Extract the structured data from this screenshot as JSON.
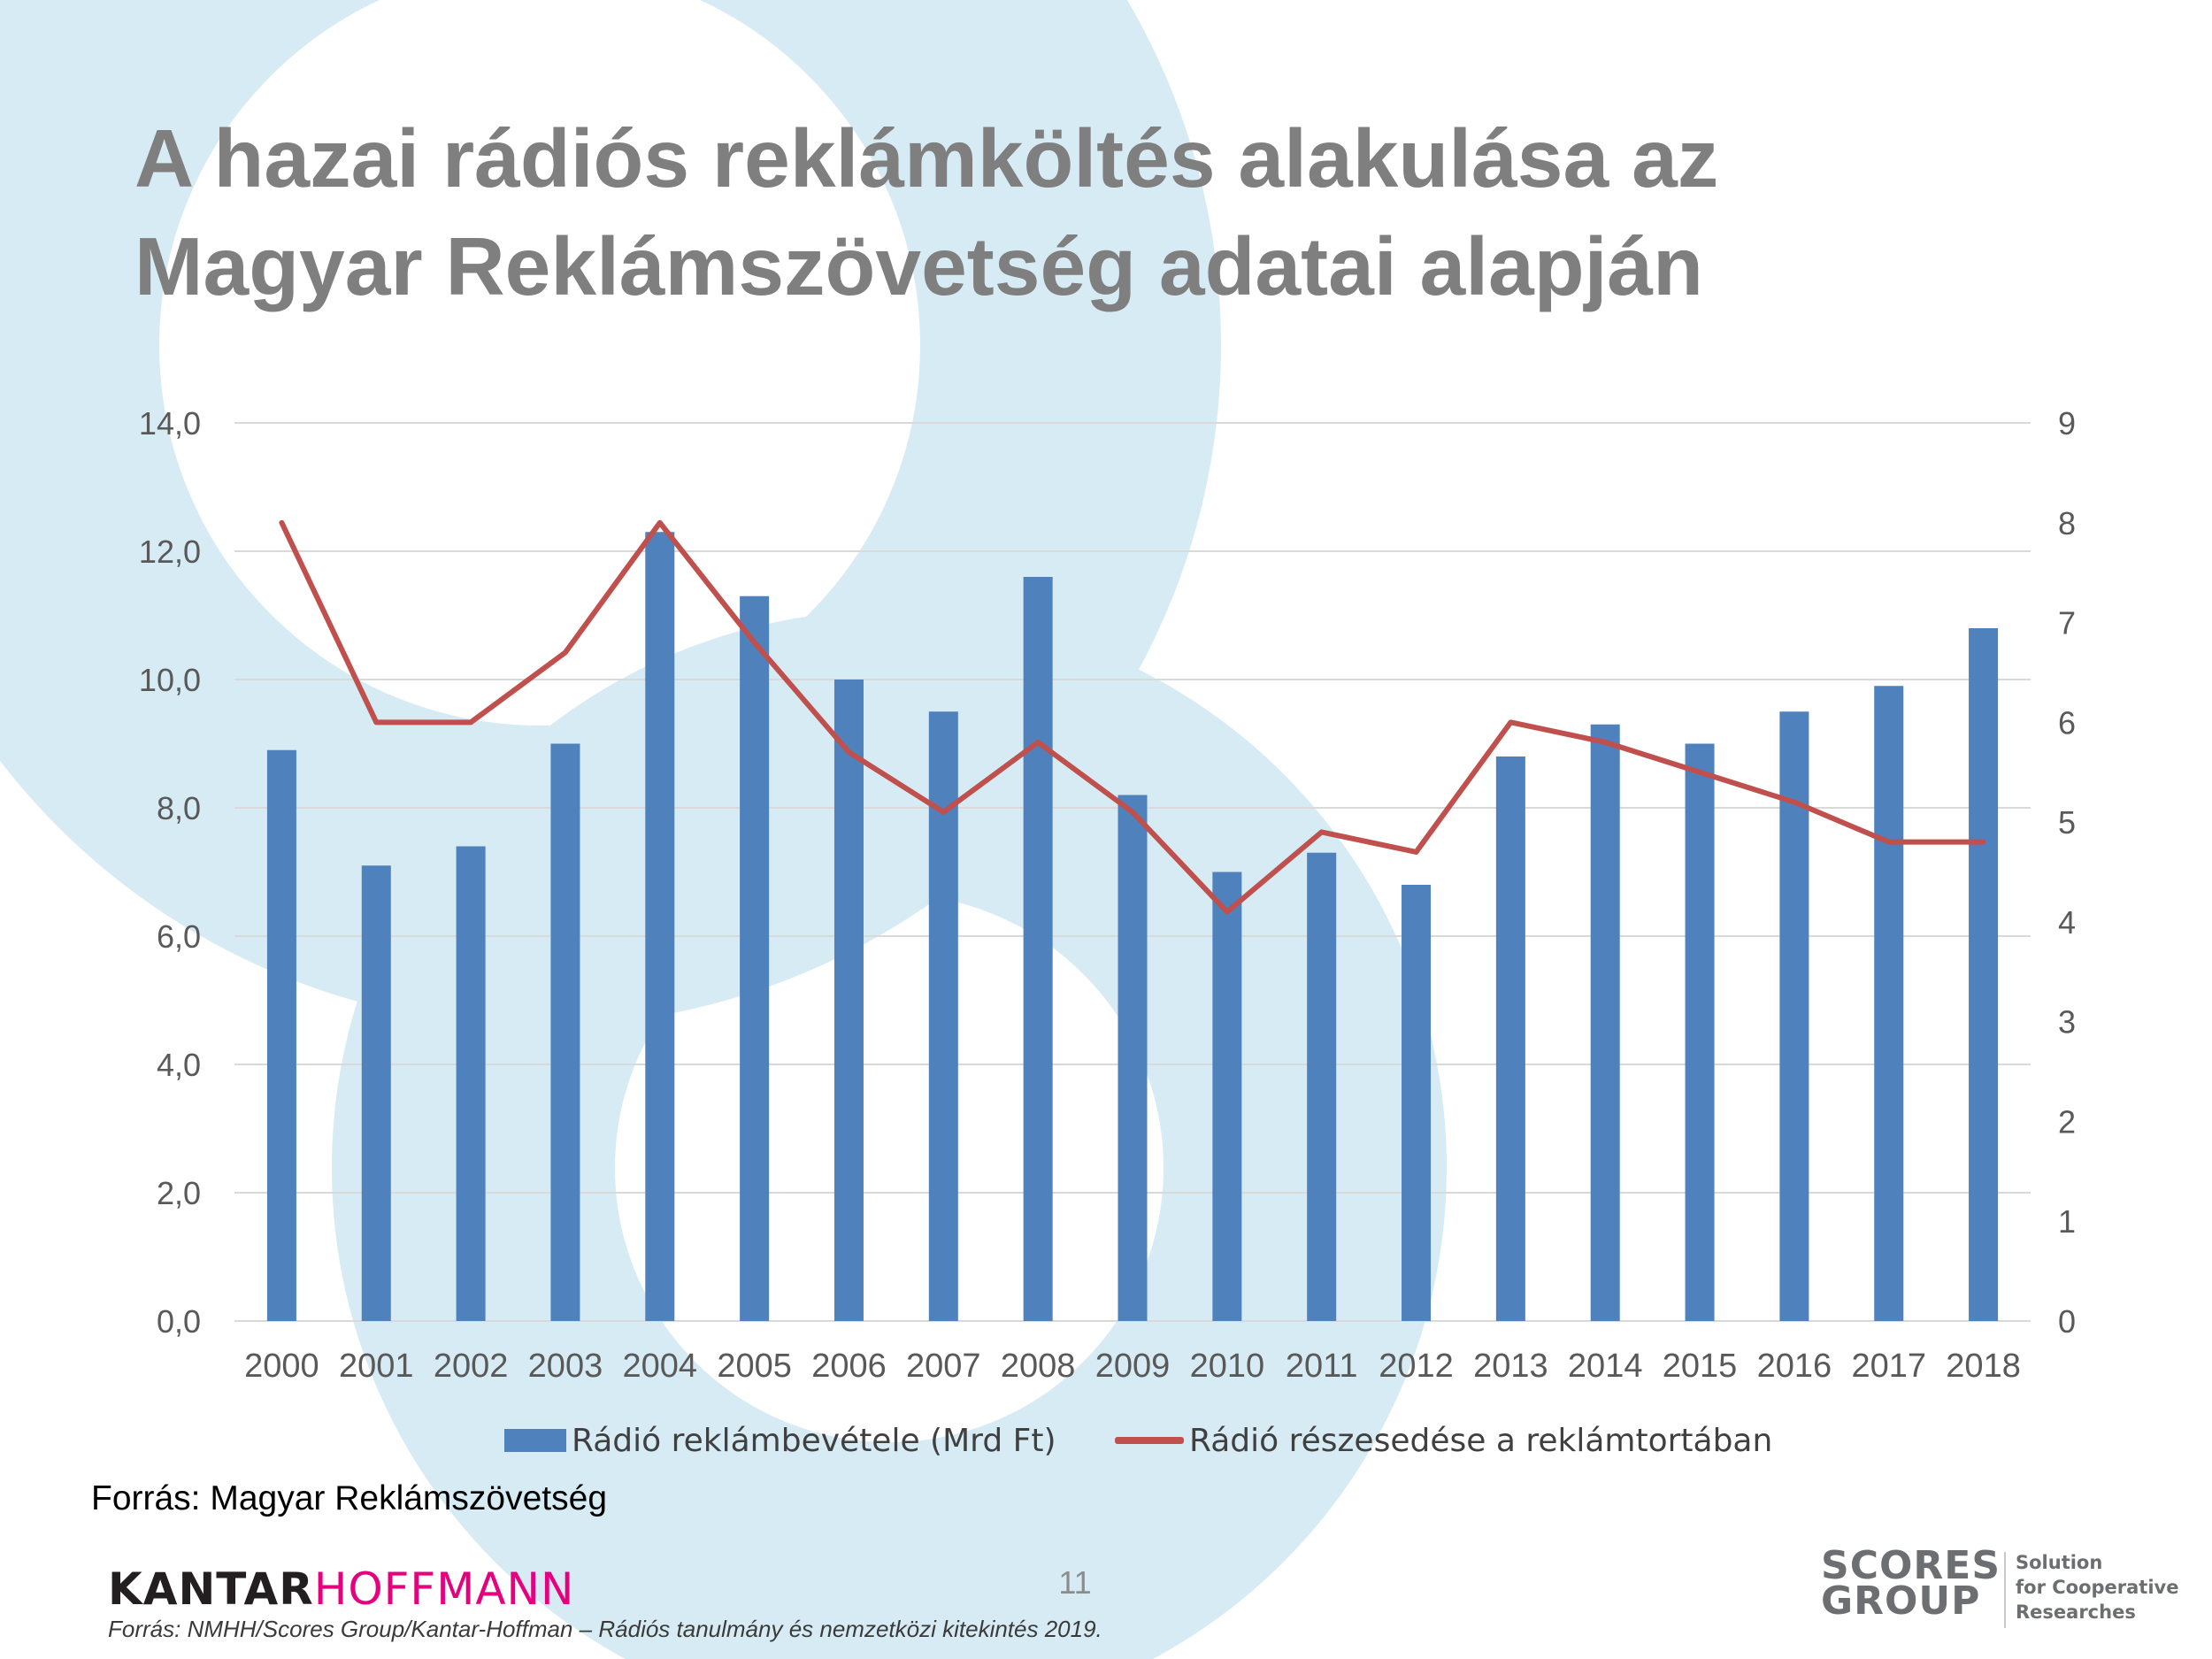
{
  "title_lines": [
    "A hazai rádiós reklámköltés alakulása az",
    "Magyar Reklámszövetség adatai alapján"
  ],
  "colors": {
    "bar": "#4f81bd",
    "line": "#c0504d",
    "title": "#7f7f7f",
    "background_circles": "#d6ebf4",
    "gridline": "#d9d9d9",
    "axis_text": "#595959"
  },
  "chart_data": {
    "type": "bar",
    "categories": [
      "2000",
      "2001",
      "2002",
      "2003",
      "2004",
      "2005",
      "2006",
      "2007",
      "2008",
      "2009",
      "2010",
      "2011",
      "2012",
      "2013",
      "2014",
      "2015",
      "2016",
      "2017",
      "2018"
    ],
    "series": [
      {
        "name": "Rádió reklámbevétele (Mrd Ft)",
        "type": "bar",
        "axis": "left",
        "values": [
          8.9,
          7.1,
          7.4,
          9.0,
          12.3,
          11.3,
          10.0,
          9.5,
          11.6,
          8.2,
          7.0,
          7.3,
          6.8,
          8.8,
          9.3,
          9.0,
          9.5,
          9.9,
          10.8
        ]
      },
      {
        "name": "Rádió részesedése a reklámtortában",
        "type": "line",
        "axis": "right",
        "values": [
          8.0,
          6.0,
          6.0,
          6.7,
          8.0,
          6.8,
          5.7,
          5.1,
          5.8,
          5.1,
          4.1,
          4.9,
          4.7,
          6.0,
          5.8,
          5.5,
          5.2,
          4.8,
          4.8
        ]
      }
    ],
    "left_axis": {
      "range": [
        0,
        14
      ],
      "ticks": [
        0,
        2,
        4,
        6,
        8,
        10,
        12,
        14
      ],
      "tick_labels": [
        "0,0",
        "2,0",
        "4,0",
        "6,0",
        "8,0",
        "10,0",
        "12,0",
        "14,0"
      ]
    },
    "right_axis": {
      "range": [
        0,
        9
      ],
      "ticks": [
        0,
        1,
        2,
        3,
        4,
        5,
        6,
        7,
        8,
        9
      ],
      "tick_labels": [
        "0",
        "1",
        "2",
        "3",
        "4",
        "5",
        "6",
        "7",
        "8",
        "9"
      ]
    },
    "grid": true,
    "legend_position": "bottom"
  },
  "source_note": "Forrás: Magyar Reklámszövetség",
  "footer": {
    "kantar_word": "KANTAR",
    "hoffmann_word": "HOFFMANN",
    "page_number": "11",
    "source": "Forrás: NMHH/Scores Group/Kantar-Hoffman – Rádiós tanulmány és nemzetközi kitekintés 2019.",
    "scores_line1": "SCORES",
    "scores_line2": "GROUP",
    "tagline": [
      "Solution",
      "for Cooperative",
      "Researches"
    ]
  }
}
